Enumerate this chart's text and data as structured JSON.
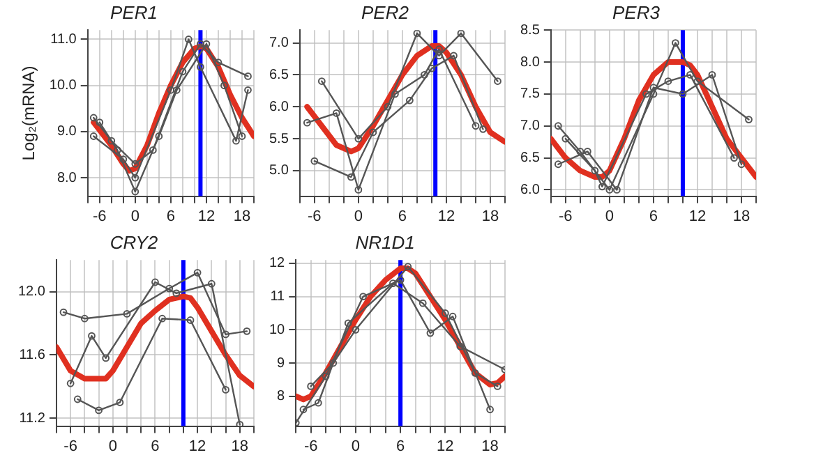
{
  "chart_data": [
    {
      "type": "line",
      "title": "PER1",
      "ylabel": "Log₂(mRNA)",
      "xlim": [
        -8,
        20
      ],
      "xticks": [
        {
          "value": -8,
          "label": null
        },
        -6,
        {
          "value": -4,
          "label": null
        },
        {
          "value": -2,
          "label": null
        },
        0,
        {
          "value": 2,
          "label": null
        },
        {
          "value": 4,
          "label": null
        },
        6,
        {
          "value": 8,
          "label": null
        },
        {
          "value": 10,
          "label": null
        },
        12,
        {
          "value": 14,
          "label": null
        },
        {
          "value": 16,
          "label": null
        },
        18,
        {
          "value": 20,
          "label": null
        }
      ],
      "ylim": [
        7.6,
        11.2
      ],
      "yticks": [
        {
          "value": 8,
          "label": "8.0"
        },
        {
          "value": 9,
          "label": "9.0"
        },
        {
          "value": 10,
          "label": "10.0"
        },
        {
          "value": 11,
          "label": "11.0"
        }
      ],
      "grid": true,
      "series": [
        {
          "color": "#555555",
          "marker": "circle",
          "x": [
            -7,
            -4,
            0,
            3,
            8,
            11,
            14,
            19
          ],
          "values": [
            9.3,
            8.8,
            8.3,
            8.6,
            10.3,
            10.9,
            10.5,
            10.2
          ]
        },
        {
          "color": "#555555",
          "marker": "circle",
          "x": [
            -6,
            -3,
            0,
            4,
            7,
            12,
            15,
            18
          ],
          "values": [
            9.2,
            8.6,
            7.7,
            8.9,
            9.9,
            10.9,
            10.0,
            8.9
          ]
        },
        {
          "color": "#555555",
          "marker": "circle",
          "x": [
            -7,
            -2,
            0,
            6,
            9,
            11,
            17,
            19
          ],
          "values": [
            8.9,
            8.4,
            8.0,
            9.9,
            11.0,
            10.4,
            8.8,
            9.9
          ]
        },
        {
          "color": "#e03020",
          "x": [
            -7,
            -4,
            -2,
            -1,
            0,
            2,
            4,
            6,
            8,
            10,
            11,
            12,
            14,
            16,
            18,
            20
          ],
          "values": [
            9.2,
            8.7,
            8.3,
            8.15,
            8.2,
            8.7,
            9.4,
            10.0,
            10.5,
            10.8,
            10.85,
            10.8,
            10.4,
            9.8,
            9.3,
            8.9
          ]
        }
      ],
      "ref_lines": [
        {
          "axis": "x",
          "value": 11,
          "color": "#0000ff"
        }
      ]
    },
    {
      "type": "line",
      "title": "PER2",
      "xlim": [
        -8,
        20
      ],
      "xticks": [
        {
          "value": -8,
          "label": null
        },
        -6,
        {
          "value": -4,
          "label": null
        },
        {
          "value": -2,
          "label": null
        },
        0,
        {
          "value": 2,
          "label": null
        },
        {
          "value": 4,
          "label": null
        },
        6,
        {
          "value": 8,
          "label": null
        },
        {
          "value": 10,
          "label": null
        },
        12,
        {
          "value": 14,
          "label": null
        },
        {
          "value": 16,
          "label": null
        },
        18,
        {
          "value": 20,
          "label": null
        }
      ],
      "ylim": [
        4.6,
        7.2
      ],
      "yticks": [
        {
          "value": 5,
          "label": "5.0"
        },
        5.5,
        {
          "value": 6,
          "label": "6.0"
        },
        6.5,
        {
          "value": 7,
          "label": "7.0"
        }
      ],
      "grid": true,
      "series": [
        {
          "color": "#555555",
          "marker": "circle",
          "x": [
            -5,
            0,
            4,
            8,
            11,
            14,
            19
          ],
          "values": [
            6.4,
            5.5,
            6.0,
            7.15,
            6.8,
            7.15,
            6.4
          ]
        },
        {
          "color": "#555555",
          "marker": "circle",
          "x": [
            -6,
            -1,
            2,
            7,
            10,
            13,
            17
          ],
          "values": [
            5.15,
            4.9,
            5.6,
            6.1,
            6.6,
            6.8,
            5.65
          ]
        },
        {
          "color": "#555555",
          "marker": "circle",
          "x": [
            -7,
            -3,
            0,
            5,
            9,
            11,
            16
          ],
          "values": [
            5.75,
            5.9,
            4.7,
            6.2,
            6.5,
            6.9,
            5.7
          ]
        },
        {
          "color": "#e03020",
          "x": [
            -7,
            -5,
            -3,
            -1,
            0,
            2,
            4,
            6,
            8,
            10,
            11,
            12,
            14,
            16,
            18,
            20
          ],
          "values": [
            6.0,
            5.7,
            5.4,
            5.3,
            5.35,
            5.7,
            6.1,
            6.5,
            6.8,
            6.95,
            6.95,
            6.85,
            6.5,
            6.0,
            5.6,
            5.45
          ]
        }
      ],
      "ref_lines": [
        {
          "axis": "x",
          "value": 10.5,
          "color": "#0000ff"
        }
      ]
    },
    {
      "type": "line",
      "title": "PER3",
      "xlim": [
        -8,
        20
      ],
      "xticks": [
        {
          "value": -8,
          "label": null
        },
        -6,
        {
          "value": -4,
          "label": null
        },
        {
          "value": -2,
          "label": null
        },
        0,
        {
          "value": 2,
          "label": null
        },
        {
          "value": 4,
          "label": null
        },
        6,
        {
          "value": 8,
          "label": null
        },
        {
          "value": 10,
          "label": null
        },
        12,
        {
          "value": 14,
          "label": null
        },
        {
          "value": 16,
          "label": null
        },
        18,
        {
          "value": 20,
          "label": null
        }
      ],
      "ylim": [
        5.9,
        8.5
      ],
      "yticks": [
        {
          "value": 6,
          "label": "6.0"
        },
        6.5,
        {
          "value": 7,
          "label": "7.0"
        },
        7.5,
        {
          "value": 8,
          "label": "8.0"
        },
        8.5
      ],
      "grid": true,
      "series": [
        {
          "color": "#555555",
          "marker": "circle",
          "x": [
            -7,
            -4,
            0,
            6,
            9,
            12,
            19
          ],
          "values": [
            7.0,
            6.6,
            6.0,
            7.5,
            8.3,
            7.7,
            7.1
          ]
        },
        {
          "color": "#555555",
          "marker": "circle",
          "x": [
            -6,
            -2,
            -1,
            5,
            8,
            11,
            17
          ],
          "values": [
            6.8,
            6.3,
            6.05,
            7.5,
            7.7,
            7.8,
            6.5
          ]
        },
        {
          "color": "#555555",
          "marker": "circle",
          "x": [
            -7,
            -3,
            1,
            6,
            10,
            14,
            18
          ],
          "values": [
            6.4,
            6.6,
            6.0,
            7.6,
            7.5,
            7.8,
            6.4
          ]
        },
        {
          "color": "#e03020",
          "x": [
            -8,
            -6,
            -4,
            -2,
            -1,
            0,
            2,
            4,
            6,
            8,
            10,
            11,
            12,
            14,
            16,
            18,
            20
          ],
          "values": [
            6.8,
            6.5,
            6.3,
            6.2,
            6.2,
            6.3,
            6.8,
            7.4,
            7.8,
            8.0,
            8.0,
            7.95,
            7.8,
            7.3,
            6.8,
            6.5,
            6.2
          ]
        }
      ],
      "ref_lines": [
        {
          "axis": "x",
          "value": 10,
          "color": "#0000ff"
        }
      ]
    },
    {
      "type": "line",
      "title": "CRY2",
      "xlim": [
        -8,
        20
      ],
      "xticks": [
        {
          "value": -8,
          "label": null
        },
        -6,
        {
          "value": -4,
          "label": null
        },
        {
          "value": -2,
          "label": null
        },
        0,
        {
          "value": 2,
          "label": null
        },
        {
          "value": 4,
          "label": null
        },
        6,
        {
          "value": 8,
          "label": null
        },
        {
          "value": 10,
          "label": null
        },
        12,
        {
          "value": 14,
          "label": null
        },
        {
          "value": 16,
          "label": null
        },
        18,
        {
          "value": 20,
          "label": null
        }
      ],
      "ylim": [
        11.15,
        12.2
      ],
      "yticks": [
        11.2,
        11.6,
        {
          "value": 12,
          "label": "12.0"
        }
      ],
      "grid": true,
      "series": [
        {
          "color": "#555555",
          "marker": "circle",
          "x": [
            -7,
            -4,
            2,
            8,
            12,
            16,
            19
          ],
          "values": [
            11.87,
            11.83,
            11.86,
            12.02,
            12.12,
            11.73,
            11.75
          ]
        },
        {
          "color": "#555555",
          "marker": "circle",
          "x": [
            -6,
            -3,
            -1,
            6,
            9,
            14,
            18
          ],
          "values": [
            11.42,
            11.72,
            11.58,
            12.06,
            11.99,
            12.05,
            11.16
          ]
        },
        {
          "color": "#555555",
          "marker": "circle",
          "x": [
            -5,
            -2,
            1,
            7,
            11,
            16
          ],
          "values": [
            11.32,
            11.25,
            11.3,
            11.83,
            11.82,
            11.38
          ]
        },
        {
          "color": "#e03020",
          "x": [
            -8,
            -6,
            -4,
            -1,
            0,
            2,
            4,
            6,
            8,
            10,
            11,
            12,
            14,
            16,
            18,
            20
          ],
          "values": [
            11.65,
            11.5,
            11.45,
            11.45,
            11.5,
            11.65,
            11.8,
            11.88,
            11.95,
            11.97,
            11.96,
            11.9,
            11.75,
            11.6,
            11.47,
            11.4
          ]
        }
      ],
      "ref_lines": [
        {
          "axis": "x",
          "value": 10,
          "color": "#0000ff"
        }
      ]
    },
    {
      "type": "line",
      "title": "NR1D1",
      "xlim": [
        -8,
        20
      ],
      "xticks": [
        {
          "value": -8,
          "label": null
        },
        -6,
        {
          "value": -4,
          "label": null
        },
        {
          "value": -2,
          "label": null
        },
        0,
        {
          "value": 2,
          "label": null
        },
        {
          "value": 4,
          "label": null
        },
        6,
        {
          "value": 8,
          "label": null
        },
        {
          "value": 10,
          "label": null
        },
        12,
        {
          "value": 14,
          "label": null
        },
        {
          "value": 16,
          "label": null
        },
        18,
        {
          "value": 20,
          "label": null
        }
      ],
      "ylim": [
        7.1,
        12.1
      ],
      "yticks": [
        8,
        9,
        10,
        11,
        12
      ],
      "grid": true,
      "series": [
        {
          "color": "#555555",
          "marker": "circle",
          "x": [
            -8,
            -4,
            1,
            6,
            10,
            13,
            18
          ],
          "values": [
            7.2,
            8.6,
            11.0,
            11.5,
            9.9,
            10.4,
            7.6
          ]
        },
        {
          "color": "#555555",
          "marker": "circle",
          "x": [
            -6,
            -3,
            0,
            7,
            12,
            16,
            19
          ],
          "values": [
            8.3,
            9.0,
            10.0,
            11.9,
            10.5,
            8.7,
            8.3
          ]
        },
        {
          "color": "#555555",
          "marker": "circle",
          "x": [
            -7,
            -5,
            -1,
            5,
            9,
            14,
            20
          ],
          "values": [
            7.6,
            7.8,
            10.2,
            11.4,
            10.8,
            9.5,
            8.8
          ]
        },
        {
          "color": "#e03020",
          "x": [
            -8,
            -7,
            -6,
            -4,
            -2,
            0,
            2,
            4,
            6,
            7,
            8,
            10,
            12,
            14,
            16,
            18,
            19,
            20
          ],
          "values": [
            8.0,
            7.9,
            8.0,
            8.7,
            9.5,
            10.3,
            11.0,
            11.5,
            11.85,
            11.85,
            11.7,
            11.0,
            10.3,
            9.5,
            8.7,
            8.35,
            8.4,
            8.6
          ]
        }
      ],
      "ref_lines": [
        {
          "axis": "x",
          "value": 6,
          "color": "#0000ff"
        }
      ]
    }
  ]
}
